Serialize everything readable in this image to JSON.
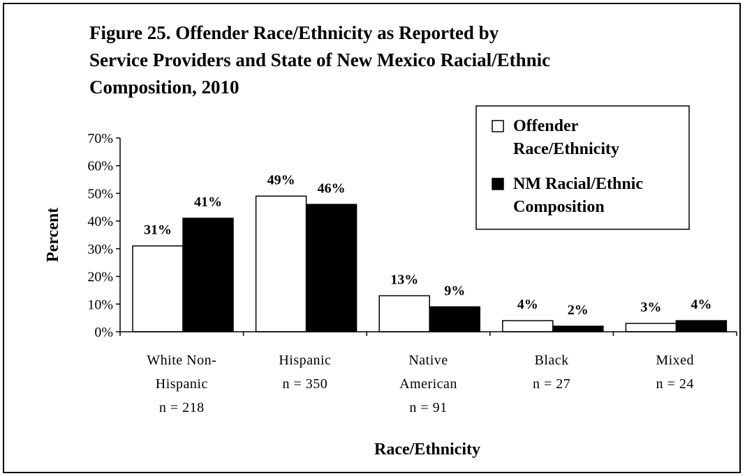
{
  "chart_data": {
    "type": "bar",
    "title_lines": [
      "Figure 25.  Offender Race/Ethnicity as Reported by",
      "Service Providers and State of New Mexico Racial/Ethnic",
      "Composition, 2010"
    ],
    "xlabel": "Race/Ethnicity",
    "ylabel": "Percent",
    "ylim": [
      0,
      70
    ],
    "yticks": [
      "0%",
      "10%",
      "20%",
      "30%",
      "40%",
      "50%",
      "60%",
      "70%"
    ],
    "categories": [
      [
        "White Non-",
        "Hispanic",
        "n = 218"
      ],
      [
        "Hispanic",
        "n = 350"
      ],
      [
        "Native",
        "American",
        "n = 91"
      ],
      [
        "Black",
        "n = 27"
      ],
      [
        "Mixed",
        "n = 24"
      ]
    ],
    "series": [
      {
        "name": "Offender Race/Ethnicity",
        "legend_lines": [
          "Offender",
          "Race/Ethnicity"
        ],
        "color": "#ffffff",
        "values": [
          31,
          49,
          13,
          4,
          3
        ],
        "labels": [
          "31%",
          "49%",
          "13%",
          "4%",
          "3%"
        ]
      },
      {
        "name": "NM Racial/Ethnic Composition",
        "legend_lines": [
          "NM Racial/Ethnic",
          "Composition"
        ],
        "color": "#000000",
        "values": [
          41,
          46,
          9,
          2,
          4
        ],
        "labels": [
          "41%",
          "46%",
          "9%",
          "2%",
          "4%"
        ]
      }
    ],
    "legend_position": "top-right",
    "grid": false
  }
}
